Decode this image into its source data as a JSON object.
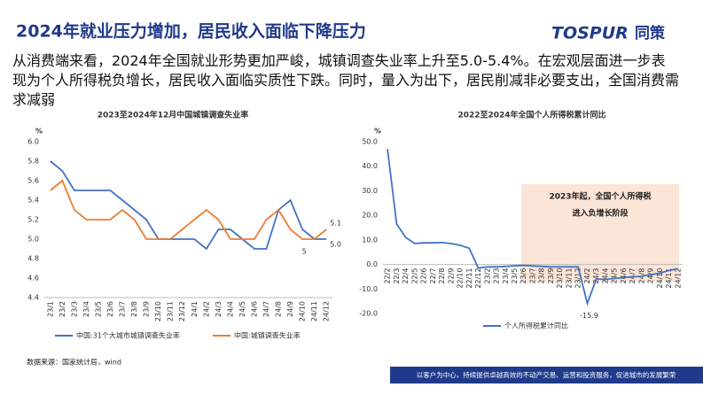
{
  "header": {
    "title": "2024年就业压力增加，居民收入面临下降压力",
    "logo_brand": "TOSPUR",
    "logo_cn": "同策"
  },
  "paragraph": "从消费端来看，2024年全国就业形势更加严峻，城镇调查失业率上升至5.0-5.4%。在宏观层面进一步表现为个人所得税负增长，居民收入面临实质性下跌。同时，量入为出下，居民削减非必要支出，全国消费需求减弱",
  "chart_data": [
    {
      "type": "line",
      "title": "2023至2024年12月中国城镇调查失业率",
      "y_unit": "%",
      "categories": [
        "23/1",
        "23/2",
        "23/3",
        "23/4",
        "23/5",
        "23/6",
        "23/7",
        "23/8",
        "23/9",
        "23/10",
        "23/11",
        "23/12",
        "24/1",
        "24/2",
        "24/3",
        "24/4",
        "24/5",
        "24/6",
        "24/7",
        "24/8",
        "24/9",
        "24/10",
        "24/11",
        "24/12"
      ],
      "series": [
        {
          "name": "中国:31个大城市城镇调查失业率",
          "color": "#4472c4",
          "values": [
            5.8,
            5.7,
            5.5,
            5.5,
            5.5,
            5.5,
            5.4,
            5.3,
            5.2,
            5.0,
            5.0,
            5.0,
            5.0,
            4.9,
            5.1,
            5.1,
            5.0,
            4.9,
            4.9,
            5.3,
            5.4,
            5.1,
            5.0,
            5.0
          ],
          "value_labels": [
            null,
            null,
            null,
            null,
            null,
            null,
            null,
            null,
            null,
            null,
            null,
            null,
            null,
            null,
            null,
            null,
            null,
            null,
            null,
            null,
            null,
            null,
            null,
            "5.0"
          ]
        },
        {
          "name": "中国:城镇调查失业率",
          "color": "#ed7d31",
          "values": [
            5.5,
            5.6,
            5.3,
            5.2,
            5.2,
            5.2,
            5.3,
            5.2,
            5.0,
            5.0,
            5.0,
            5.1,
            5.2,
            5.3,
            5.2,
            5.0,
            5.0,
            5.0,
            5.2,
            5.3,
            5.1,
            5.0,
            5.0,
            5.1
          ],
          "value_labels": [
            null,
            null,
            null,
            null,
            null,
            null,
            null,
            null,
            null,
            null,
            null,
            null,
            null,
            null,
            null,
            null,
            null,
            null,
            null,
            null,
            null,
            "5",
            null,
            "5.1"
          ]
        }
      ],
      "ylim": [
        4.4,
        6.0
      ],
      "yticks": [
        4.4,
        4.6,
        4.8,
        {
          "value": 5,
          "label": "5.0"
        },
        5.2,
        5.4,
        5.6,
        5.8,
        {
          "value": 6,
          "label": "6.0"
        }
      ]
    },
    {
      "type": "line",
      "title": "2022至2024年全国个人所得税累计同比",
      "y_unit": "%",
      "categories": [
        "22/2",
        "22/3",
        "22/4",
        "22/5",
        "22/6",
        "22/7",
        "22/8",
        "22/9",
        "22/10",
        "22/11",
        "22/12",
        "23/2",
        "23/3",
        "23/4",
        "23/5",
        "23/6",
        "23/7",
        "23/8",
        "23/9",
        "23/10",
        "23/11",
        "23/12",
        "24/2",
        "24/3",
        "24/4",
        "24/5",
        "24/6",
        "24/7",
        "24/8",
        "24/9",
        "24/10",
        "24/11",
        "24/12"
      ],
      "series": [
        {
          "name": "个人所得税累计同比",
          "color": "#4472c4",
          "values": [
            47,
            16.5,
            11,
            8.5,
            8.8,
            8.8,
            8.9,
            8.5,
            7.8,
            6.6,
            -1.5,
            -1,
            -1,
            -0.8,
            -0.6,
            -0.4,
            -0.6,
            -0.8,
            -1,
            -1,
            -1,
            -1,
            -15.9,
            -5.9,
            -6.1,
            -5.7,
            -5.4,
            -5.1,
            -4.8,
            -4.2,
            -3.5,
            -2.5,
            -1.7
          ],
          "value_labels": [
            null,
            null,
            null,
            null,
            null,
            null,
            null,
            null,
            null,
            null,
            null,
            null,
            null,
            null,
            null,
            null,
            null,
            null,
            null,
            null,
            null,
            null,
            "-15.9",
            null,
            null,
            null,
            null,
            null,
            null,
            null,
            null,
            null,
            null
          ]
        }
      ],
      "annotation": [
        "2023年起，全国个人所得税",
        "进入负增长阶段"
      ],
      "ylim": [
        -20,
        50
      ],
      "yticks": [
        {
          "value": -20,
          "label": "-20.0"
        },
        {
          "value": -10,
          "label": "-10.0"
        },
        {
          "value": 0,
          "label": "0.0"
        },
        {
          "value": 10,
          "label": "10.0"
        },
        {
          "value": 20,
          "label": "20.0"
        },
        {
          "value": 30,
          "label": "30.0"
        },
        {
          "value": 40,
          "label": "40.0"
        },
        {
          "value": 50,
          "label": "50.0"
        }
      ]
    }
  ],
  "footer": {
    "source": "数据来源：国家统计局，wind",
    "slogan": "以客户为中心，持续提供卓越高效的不动产交易、运营和投资服务，促进城市的发展繁荣"
  }
}
